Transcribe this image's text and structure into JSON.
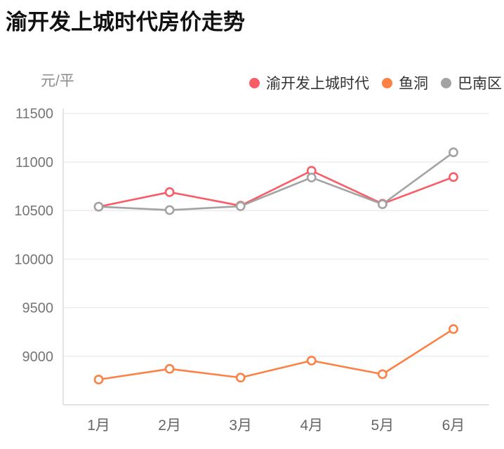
{
  "header": {
    "title": "渝开发上城时代房价走势",
    "unit_label": "元/平"
  },
  "chart_data": {
    "type": "line",
    "title": "渝开发上城时代房价走势",
    "ylabel": "元/平",
    "xlabel": "",
    "categories": [
      "1月",
      "2月",
      "3月",
      "4月",
      "5月",
      "6月"
    ],
    "series": [
      {
        "name": "渝开发上城时代",
        "color": "#f75c67",
        "values": [
          10540,
          10690,
          10550,
          10910,
          10570,
          10845
        ]
      },
      {
        "name": "鱼洞",
        "color": "#fb8144",
        "values": [
          8760,
          8870,
          8780,
          8955,
          8815,
          9280
        ]
      },
      {
        "name": "巴南区",
        "color": "#a3a3a3",
        "values": [
          10540,
          10505,
          10545,
          10840,
          10565,
          11100
        ]
      }
    ],
    "ylim": [
      8500,
      11500
    ],
    "yticks": [
      9000,
      9500,
      10000,
      10500,
      11000,
      11500
    ],
    "grid": true,
    "legend_position": "top",
    "marker": "open-circle"
  },
  "style": {
    "grid_color": "#ececec",
    "axis_color": "#d9d9d9",
    "ytick_label_color": "#757575",
    "xtick_label_color": "#666666",
    "legend_text_color": "#333333",
    "title_color": "#111111",
    "unit_label_color": "#8c8c8c",
    "background": "#ffffff"
  }
}
